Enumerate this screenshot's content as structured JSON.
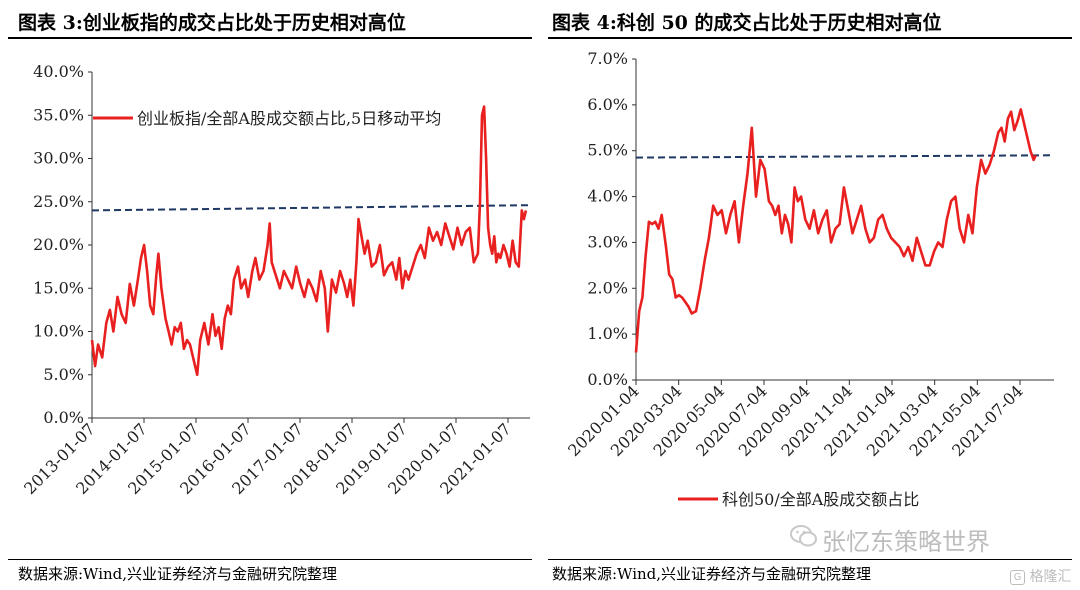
{
  "left": {
    "title": "图表 3:创业板指的成交占比处于历史相对高位",
    "source": "数据来源:Wind,兴业证券经济与金融研究院整理"
  },
  "right": {
    "title": "图表 4:科创 50 的成交占比处于历史相对高位",
    "source": "数据来源:Wind,兴业证券经济与金融研究院整理"
  },
  "watermark": "张忆东策略世界",
  "brand": "格隆汇",
  "chart_data": [
    {
      "type": "line",
      "title": "",
      "xlabel": "",
      "ylabel": "",
      "x_ticks": [
        "2013-01-07",
        "2014-01-07",
        "2015-01-07",
        "2016-01-07",
        "2017-01-07",
        "2018-01-07",
        "2019-01-07",
        "2020-01-07",
        "2021-01-07"
      ],
      "y_ticks": [
        "0.0%",
        "5.0%",
        "10.0%",
        "15.0%",
        "20.0%",
        "25.0%",
        "30.0%",
        "35.0%",
        "40.0%"
      ],
      "ylim": [
        0,
        40
      ],
      "xlim": [
        2013.0,
        2021.58
      ],
      "legend_position": "top-left",
      "reference_line": {
        "style": "dashed",
        "color": "#1f3864",
        "from": 24.0,
        "to": 24.6
      },
      "series": [
        {
          "name": "创业板指/全部A股成交额占比,5日移动平均",
          "color": "#e8201f",
          "x": [
            2013.0,
            2013.06,
            2013.12,
            2013.2,
            2013.28,
            2013.35,
            2013.42,
            2013.5,
            2013.58,
            2013.66,
            2013.74,
            2013.82,
            2013.9,
            2013.96,
            2014.02,
            2014.08,
            2014.14,
            2014.2,
            2014.26,
            2014.3,
            2014.36,
            2014.44,
            2014.5,
            2014.56,
            2014.62,
            2014.68,
            2014.74,
            2014.8,
            2014.86,
            2014.92,
            2015.0,
            2015.06,
            2015.12,
            2015.2,
            2015.28,
            2015.36,
            2015.42,
            2015.48,
            2015.54,
            2015.6,
            2015.66,
            2015.72,
            2015.78,
            2015.86,
            2015.92,
            2016.0,
            2016.06,
            2016.14,
            2016.2,
            2016.28,
            2016.36,
            2016.44,
            2016.48,
            2016.52,
            2016.6,
            2016.68,
            2016.76,
            2016.84,
            2016.92,
            2017.0,
            2017.08,
            2017.16,
            2017.24,
            2017.32,
            2017.4,
            2017.48,
            2017.56,
            2017.62,
            2017.7,
            2017.78,
            2017.86,
            2017.94,
            2018.0,
            2018.06,
            2018.12,
            2018.18,
            2018.22,
            2018.28,
            2018.34,
            2018.4,
            2018.48,
            2018.56,
            2018.64,
            2018.72,
            2018.8,
            2018.88,
            2018.96,
            2019.02,
            2019.08,
            2019.14,
            2019.2,
            2019.28,
            2019.36,
            2019.44,
            2019.52,
            2019.6,
            2019.68,
            2019.76,
            2019.84,
            2019.92,
            2020.0,
            2020.08,
            2020.16,
            2020.24,
            2020.32,
            2020.4,
            2020.48,
            2020.56,
            2020.6,
            2020.64,
            2020.68,
            2020.72,
            2020.76,
            2020.8,
            2020.84,
            2020.88,
            2020.92,
            2020.96,
            2021.0,
            2021.06,
            2021.12,
            2021.18,
            2021.24,
            2021.3,
            2021.36,
            2021.42,
            2021.46,
            2021.5
          ],
          "values": [
            9.0,
            6.0,
            8.5,
            7.0,
            11.0,
            12.5,
            10.0,
            14.0,
            12.0,
            11.0,
            15.5,
            13.0,
            16.0,
            18.5,
            20.0,
            17.0,
            13.0,
            12.0,
            16.5,
            19.0,
            15.0,
            11.5,
            10.0,
            8.5,
            10.5,
            10.0,
            11.0,
            8.0,
            9.0,
            8.5,
            6.5,
            5.0,
            9.0,
            11.0,
            8.5,
            12.0,
            9.5,
            10.5,
            8.0,
            11.5,
            13.0,
            12.0,
            16.0,
            17.5,
            15.0,
            16.0,
            14.0,
            17.0,
            18.5,
            16.0,
            17.0,
            20.0,
            22.5,
            18.0,
            16.5,
            15.0,
            17.0,
            16.0,
            15.0,
            17.5,
            15.5,
            14.0,
            16.0,
            15.0,
            13.5,
            17.0,
            15.0,
            10.0,
            16.0,
            14.5,
            17.0,
            15.5,
            14.0,
            16.0,
            13.0,
            18.0,
            23.0,
            21.0,
            19.0,
            20.5,
            17.5,
            18.0,
            20.0,
            16.5,
            17.5,
            18.0,
            16.0,
            18.5,
            15.0,
            17.0,
            16.0,
            17.5,
            19.0,
            20.0,
            18.5,
            22.0,
            20.5,
            21.5,
            20.0,
            22.5,
            21.0,
            19.5,
            22.0,
            20.0,
            21.5,
            22.0,
            18.0,
            19.0,
            25.0,
            35.0,
            36.0,
            30.0,
            22.0,
            20.0,
            19.0,
            21.0,
            18.0,
            19.0,
            18.5,
            20.0,
            19.0,
            17.5,
            20.5,
            18.0,
            17.5,
            24.0,
            23.0,
            24.0
          ]
        }
      ]
    },
    {
      "type": "line",
      "title": "",
      "xlabel": "",
      "ylabel": "",
      "x_ticks": [
        "2020-01-04",
        "2020-03-04",
        "2020-05-04",
        "2020-07-04",
        "2020-09-04",
        "2020-11-04",
        "2021-01-04",
        "2021-03-04",
        "2021-05-04",
        "2021-07-04"
      ],
      "y_ticks": [
        "0.0%",
        "1.0%",
        "2.0%",
        "3.0%",
        "4.0%",
        "5.0%",
        "6.0%",
        "7.0%"
      ],
      "ylim": [
        0,
        7
      ],
      "xlim": [
        0,
        19.5
      ],
      "legend_position": "bottom",
      "reference_line": {
        "style": "dashed",
        "color": "#1f3864",
        "from": 4.85,
        "to": 4.9
      },
      "series": [
        {
          "name": "科创50/全部A股成交额占比",
          "color": "#e8201f",
          "x": [
            0.0,
            0.15,
            0.3,
            0.45,
            0.6,
            0.75,
            0.9,
            1.05,
            1.2,
            1.4,
            1.55,
            1.7,
            1.85,
            2.0,
            2.15,
            2.3,
            2.45,
            2.6,
            2.8,
            3.0,
            3.2,
            3.4,
            3.6,
            3.8,
            4.0,
            4.2,
            4.4,
            4.6,
            4.8,
            5.0,
            5.2,
            5.4,
            5.6,
            5.8,
            6.0,
            6.2,
            6.35,
            6.5,
            6.65,
            6.8,
            6.95,
            7.1,
            7.25,
            7.4,
            7.55,
            7.7,
            7.9,
            8.1,
            8.3,
            8.5,
            8.7,
            8.9,
            9.1,
            9.3,
            9.5,
            9.7,
            9.9,
            10.1,
            10.3,
            10.5,
            10.7,
            10.9,
            11.1,
            11.3,
            11.5,
            11.7,
            11.9,
            12.1,
            12.3,
            12.5,
            12.7,
            12.9,
            13.1,
            13.3,
            13.5,
            13.7,
            13.9,
            14.1,
            14.3,
            14.5,
            14.7,
            14.9,
            15.1,
            15.3,
            15.5,
            15.7,
            15.9,
            16.1,
            16.3,
            16.5,
            16.7,
            16.9,
            17.05,
            17.2,
            17.35,
            17.5,
            17.65,
            17.8,
            17.95,
            18.1,
            18.25,
            18.4,
            18.55,
            18.65
          ],
          "values": [
            0.6,
            1.5,
            1.8,
            2.7,
            3.45,
            3.4,
            3.45,
            3.3,
            3.6,
            2.9,
            2.3,
            2.2,
            1.8,
            1.85,
            1.8,
            1.7,
            1.6,
            1.45,
            1.5,
            2.0,
            2.6,
            3.1,
            3.8,
            3.6,
            3.7,
            3.2,
            3.6,
            3.9,
            3.0,
            3.8,
            4.5,
            5.5,
            4.0,
            4.8,
            4.6,
            3.9,
            3.8,
            3.6,
            3.8,
            3.2,
            3.6,
            3.4,
            3.0,
            4.2,
            3.9,
            4.0,
            3.5,
            3.3,
            3.7,
            3.2,
            3.5,
            3.7,
            3.0,
            3.3,
            3.4,
            4.2,
            3.7,
            3.2,
            3.5,
            3.8,
            3.3,
            3.0,
            3.1,
            3.5,
            3.6,
            3.3,
            3.1,
            3.0,
            2.9,
            2.7,
            2.9,
            2.6,
            3.1,
            2.8,
            2.5,
            2.5,
            2.8,
            3.0,
            2.9,
            3.5,
            3.9,
            4.0,
            3.3,
            3.0,
            3.6,
            3.2,
            4.2,
            4.8,
            4.5,
            4.7,
            5.0,
            5.4,
            5.5,
            5.2,
            5.7,
            5.85,
            5.45,
            5.65,
            5.9,
            5.6,
            5.3,
            5.0,
            4.8,
            4.9
          ]
        }
      ]
    }
  ]
}
